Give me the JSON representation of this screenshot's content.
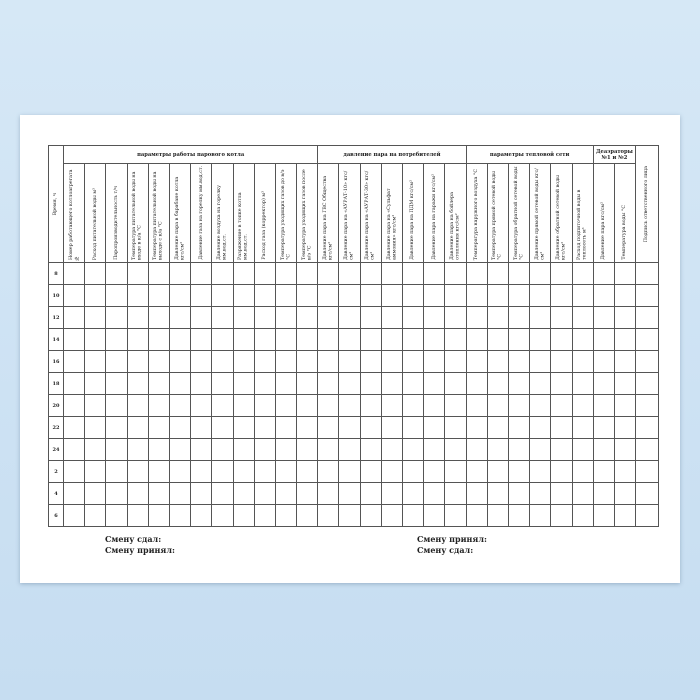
{
  "table": {
    "time_header": "Время, ч",
    "groups": [
      {
        "label": "параметры работы парового котла",
        "columns": [
          "Номер работающего котлоагрегата №",
          "Расход питательной воды м³",
          "Паропроизводительность т/ч",
          "Температура питательной воды на входе в к/а °С",
          "Температура питательной воды на выходе с к/а °С",
          "Давление пара в барабане котла кгс/см²",
          "Давление газа на горелку мм.вод.ст.",
          "Давление воздуха на горелку мм.вод.ст.",
          "Разряжение в топке котла мм.вод.ст.",
          "Расход газа (корректор) м³",
          "Температура уходящих газов до в/э °С",
          "Температура уходящих газов после в/э °С"
        ]
      },
      {
        "label": "давление пара на потребителей",
        "columns": [
          "Давление пара на ГВС Общества кгс/см²",
          "Давление пара на «АУРАТ-10» кгс/см²",
          "Давление пара на «АУРАТ-30» кгс/см²",
          "Давление пара на «Сульфат аммония» кгс/см²",
          "Давление пара на ПДМ кгс/см²",
          "Давление пара на гаражи кгс/см²",
          "Давление пара на бойлера отопления кгс/см²"
        ]
      },
      {
        "label": "параметры тепловой сети",
        "columns": [
          "Температура наружного воздуха °С",
          "Температура прямой сетевой воды °С",
          "Температура обратной сетевой воды °С",
          "Давление прямой сетевой воды кгс/см²",
          "Давление обратной сетевой воды кгс/см²",
          "Расход подпиточной воды в теплосеть м³"
        ]
      },
      {
        "label": "Деаэраторы №1 и №2",
        "columns": [
          "Давление пара кгс/см²",
          "Температура воды °С"
        ]
      }
    ],
    "signature_header": "Подпись ответственного лица",
    "rows": [
      "8",
      "10",
      "12",
      "14",
      "16",
      "18",
      "20",
      "22",
      "24",
      "2",
      "4",
      "6"
    ]
  },
  "footer": {
    "left": [
      "Смену сдал:",
      "Смену принял:"
    ],
    "right": [
      "Смену принял:",
      "Смену сдал:"
    ]
  }
}
